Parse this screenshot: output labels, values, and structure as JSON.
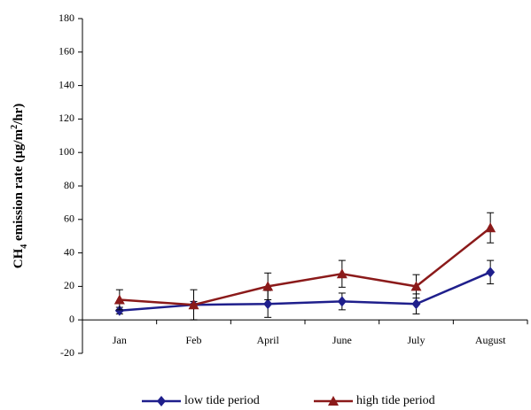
{
  "chart_data": {
    "type": "line",
    "y_label_parts": [
      "CH",
      "4",
      " emission rate (µg/m",
      "2",
      "/hr)"
    ],
    "categories": [
      "Jan",
      "Feb",
      "April",
      "June",
      "July",
      "August"
    ],
    "series": [
      {
        "name": "low tide period",
        "color": "#1f1f8c",
        "marker": "diamond",
        "values": [
          5.5,
          9,
          9.5,
          11,
          9.5,
          28.5
        ],
        "errors": [
          2,
          2,
          8,
          5,
          6,
          7
        ]
      },
      {
        "name": "high tide period",
        "color": "#8b1a1a",
        "marker": "triangle",
        "values": [
          12,
          9,
          20,
          27.5,
          20,
          55
        ],
        "errors": [
          6,
          9,
          8,
          8,
          7,
          9
        ]
      }
    ],
    "ylim": [
      -20,
      180
    ],
    "yticks": [
      -20,
      0,
      20,
      40,
      60,
      80,
      100,
      120,
      140,
      160,
      180
    ],
    "grid": false,
    "legend": "bottom"
  }
}
